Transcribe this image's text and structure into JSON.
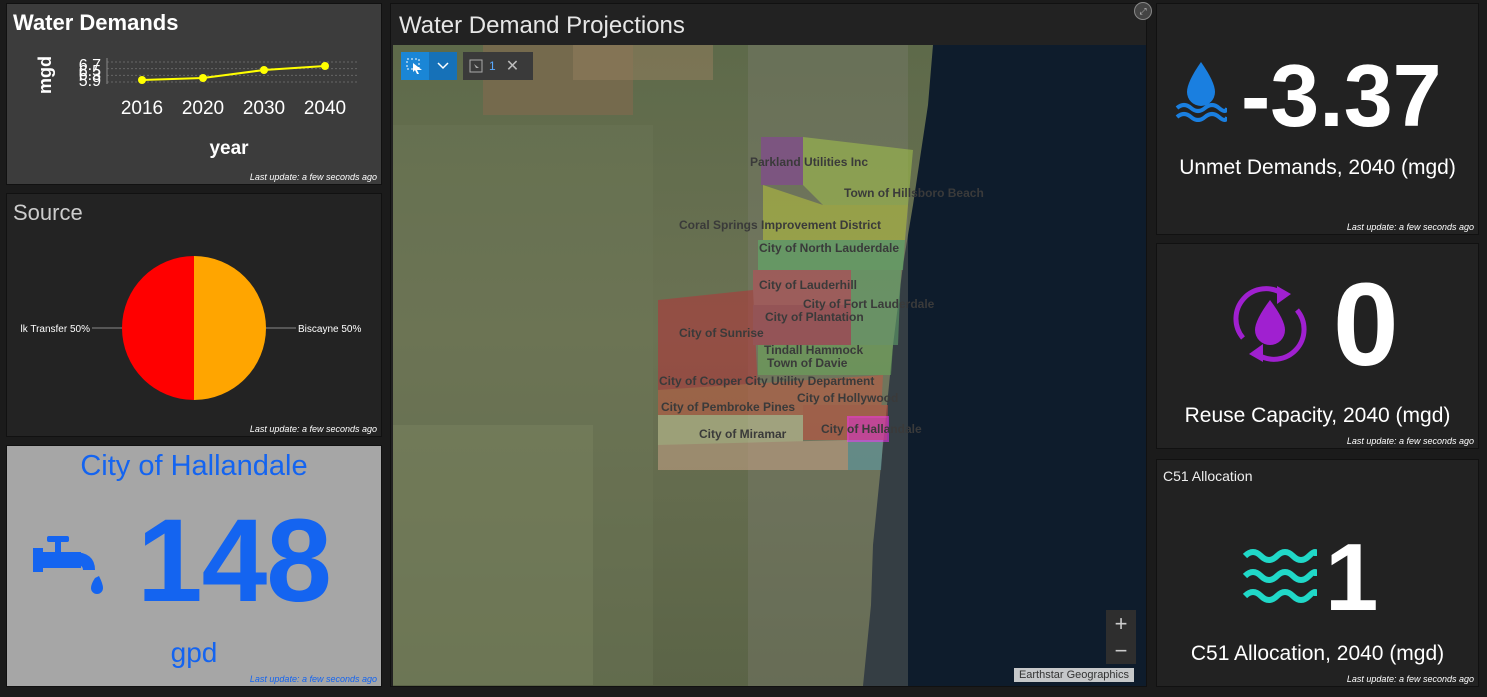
{
  "water_demands": {
    "title": "Water Demands",
    "last_update": "Last update: a few seconds ago",
    "chart_data": {
      "type": "line",
      "title": "Water Demands",
      "xlabel": "year",
      "ylabel": "mgd",
      "x": [
        "2016",
        "2020",
        "2030",
        "2040"
      ],
      "y_tick_labels": [
        "6.7",
        "6.5",
        "6.3",
        "5.9"
      ],
      "series": [
        {
          "values": [
            6.0,
            6.1,
            6.5,
            6.7
          ]
        }
      ],
      "ylim": [
        5.9,
        6.9
      ],
      "grid": true,
      "color": "#ffff00"
    }
  },
  "source": {
    "title": "Source",
    "last_update": "Last update: a few seconds ago",
    "chart_data": {
      "type": "pie",
      "slices": [
        {
          "label": "Biscayne 50%",
          "value": 50,
          "color": "#ffa500"
        },
        {
          "label": "lk Transfer 50%",
          "value": 50,
          "color": "#ff0000"
        }
      ]
    }
  },
  "city_indicator": {
    "name": "City of Hallandale",
    "value": "148",
    "unit": "gpd",
    "icon": "faucet-icon",
    "color": "#1464f0",
    "last_update": "Last update: a few seconds ago"
  },
  "map": {
    "title": "Water Demand Projections",
    "selection_count": "1",
    "attribution": "Earthstar Geographics",
    "zoom_in": "+",
    "zoom_out": "−",
    "labels": [
      "Parkland Utilities Inc",
      "Town of Hillsboro Beach",
      "Coral Springs Improvement District",
      "City of North Lauderdale",
      "City of Lauderhill",
      "City of Fort Lauderdale",
      "City of Plantation",
      "City of Sunrise",
      "Tindall Hammock",
      "Town of Davie",
      "City of Cooper City Utility Department",
      "City of Hollywood",
      "City of Pembroke Pines",
      "City of Miramar",
      "City of Hallandale"
    ]
  },
  "unmet": {
    "value": "-3.37",
    "label": "Unmet Demands, 2040 (mgd)",
    "icon": "water-drop-icon",
    "color": "#1a7fe0",
    "last_update": "Last update: a few seconds ago"
  },
  "reuse": {
    "value": "0",
    "label": "Reuse Capacity, 2040 (mgd)",
    "icon": "recycle-drop-icon",
    "color": "#a020d0",
    "last_update": "Last update: a few seconds ago"
  },
  "c51": {
    "title": "C51 Allocation",
    "value": "1",
    "label": "C51 Allocation, 2040 (mgd)",
    "icon": "waves-icon",
    "color": "#20d8c8",
    "last_update": "Last update: a few seconds ago"
  }
}
